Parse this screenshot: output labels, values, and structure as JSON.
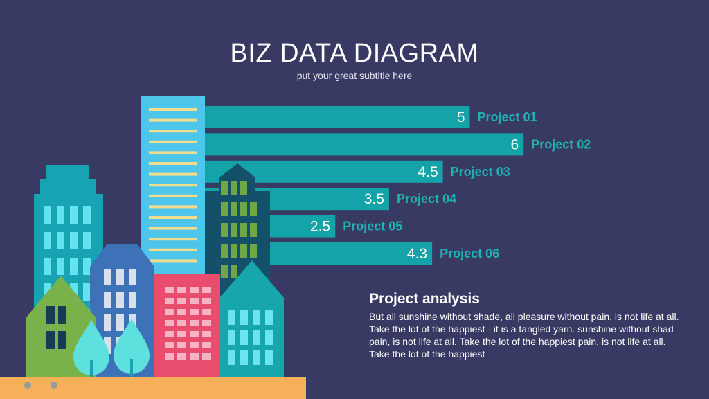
{
  "header": {
    "title": "BIZ DATA DIAGRAM",
    "subtitle": "put your great subtitle here"
  },
  "analysis": {
    "title": "Project analysis",
    "text": "But all sunshine without shade, all pleasure without pain, is not life at all. Take the lot of the happiest - it is a tangled yarn. sunshine without shad pain, is not life at all. Take the lot of the happiest pain, is not life at all. Take the lot of the happiest"
  },
  "colors": {
    "background": "#383a63",
    "bar": "#14a3a8",
    "label": "#1fb3ae",
    "ground": "#f6b05a"
  },
  "chart_data": {
    "type": "bar",
    "orientation": "horizontal",
    "categories": [
      "Project 01",
      "Project 02",
      "Project 03",
      "Project 04",
      "Project 05",
      "Project 06"
    ],
    "values": [
      5,
      6,
      4.5,
      3.5,
      2.5,
      4.3
    ],
    "value_labels": [
      "5",
      "6",
      "4.5",
      "3.5",
      "2.5",
      "4.3"
    ],
    "xlim": [
      0,
      6
    ],
    "grid": false,
    "legend": "none"
  }
}
